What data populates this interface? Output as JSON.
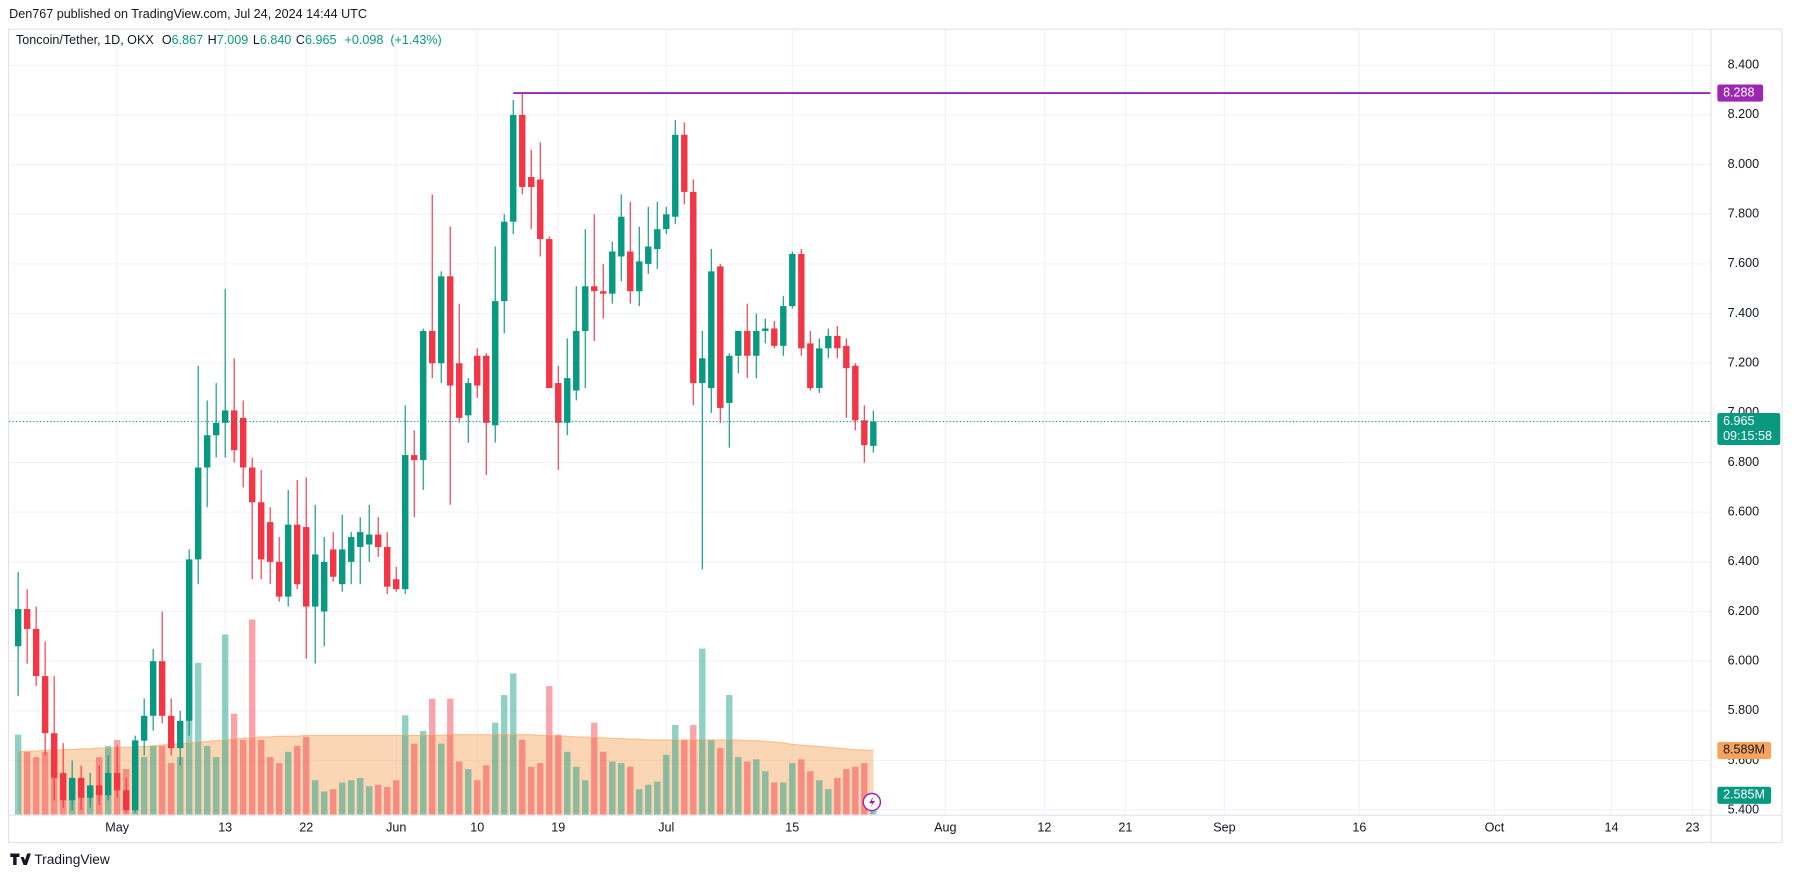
{
  "chart_data": {
    "type": "candlestick",
    "published": "Den767 published on TradingView.com, Jul 24, 2024 14:44 UTC",
    "symbol": "Toncoin/Tether, 1D, OKX",
    "legend_keys": [
      "O",
      "H",
      "L",
      "C"
    ],
    "legend_values": [
      6.867,
      7.009,
      {
        "value": 6.84,
        "label": "6.840"
      },
      6.965
    ],
    "change": {
      "value": 0.098,
      "label": "+0.098"
    },
    "change_percent": {
      "value": 1.43,
      "label": "(+1.43%)"
    },
    "countdown": "09:15:58",
    "brand": "TradingView",
    "up_color": "#089981",
    "down_color": "#f23645",
    "volume_ma_color": "#f7a35c",
    "grid": true,
    "x": [
      "2024-04-20",
      "2024-04-21",
      "2024-04-22",
      "2024-04-23",
      "2024-04-24",
      "2024-04-25",
      "2024-04-26",
      "2024-04-27",
      "2024-04-28",
      "2024-04-29",
      "2024-04-30",
      "2024-05-01",
      "2024-05-02",
      "2024-05-03",
      "2024-05-04",
      "2024-05-05",
      "2024-05-06",
      "2024-05-07",
      "2024-05-08",
      "2024-05-09",
      "2024-05-10",
      "2024-05-11",
      "2024-05-12",
      "2024-05-13",
      "2024-05-14",
      "2024-05-15",
      "2024-05-16",
      "2024-05-17",
      "2024-05-18",
      "2024-05-19",
      "2024-05-20",
      "2024-05-21",
      "2024-05-22",
      "2024-05-23",
      "2024-05-24",
      "2024-05-25",
      "2024-05-26",
      "2024-05-27",
      "2024-05-28",
      "2024-05-29",
      "2024-05-30",
      "2024-05-31",
      "2024-06-01",
      "2024-06-02",
      "2024-06-03",
      "2024-06-04",
      "2024-06-05",
      "2024-06-06",
      "2024-06-07",
      "2024-06-08",
      "2024-06-09",
      "2024-06-10",
      "2024-06-11",
      "2024-06-12",
      "2024-06-13",
      "2024-06-14",
      "2024-06-15",
      "2024-06-16",
      "2024-06-17",
      "2024-06-18",
      "2024-06-19",
      "2024-06-20",
      "2024-06-21",
      "2024-06-22",
      "2024-06-23",
      "2024-06-24",
      "2024-06-25",
      "2024-06-26",
      "2024-06-27",
      "2024-06-28",
      "2024-06-29",
      "2024-06-30",
      "2024-07-01",
      "2024-07-02",
      "2024-07-03",
      "2024-07-04",
      "2024-07-05",
      "2024-07-06",
      "2024-07-07",
      "2024-07-08",
      "2024-07-09",
      "2024-07-10",
      "2024-07-11",
      "2024-07-12",
      "2024-07-13",
      "2024-07-14",
      "2024-07-15",
      "2024-07-16",
      "2024-07-17",
      "2024-07-18",
      "2024-07-19",
      "2024-07-20",
      "2024-07-21",
      "2024-07-22",
      "2024-07-23",
      "2024-07-24"
    ],
    "open": [
      6.06,
      6.21,
      6.13,
      5.94,
      5.71,
      5.55,
      5.44,
      5.53,
      5.45,
      5.5,
      5.46,
      5.55,
      5.48,
      5.4,
      5.68,
      5.78,
      6.0,
      5.78,
      5.65,
      5.76,
      6.41,
      6.78,
      6.91,
      6.96,
      7.01,
      6.98,
      6.78,
      6.64,
      6.56,
      6.4,
      6.26,
      6.55,
      6.54,
      6.22,
      6.2,
      6.45,
      6.31,
      6.4,
      6.46,
      6.47,
      6.51,
      6.46,
      6.33,
      6.29,
      6.83,
      6.81,
      7.33,
      7.2,
      7.55,
      7.2,
      6.99,
      7.23,
      7.23,
      6.95,
      7.45,
      7.77,
      8.2,
      7.95,
      7.94,
      7.7,
      7.12,
      6.96,
      7.09,
      7.33,
      7.51,
      7.49,
      7.48,
      7.63,
      7.65,
      7.49,
      7.6,
      7.66,
      7.74,
      7.79,
      8.12,
      7.89,
      7.12,
      7.1,
      7.59,
      7.04,
      7.23,
      7.33,
      7.23,
      7.33,
      7.34,
      7.27,
      7.43,
      7.64,
      7.28,
      7.1,
      7.26,
      7.31,
      7.27,
      7.19,
      6.97,
      6.867
    ],
    "high": [
      6.36,
      6.29,
      6.22,
      6.08,
      5.94,
      5.67,
      5.6,
      5.58,
      5.55,
      5.58,
      5.62,
      5.66,
      5.53,
      5.7,
      5.85,
      6.05,
      6.2,
      5.85,
      5.8,
      6.45,
      7.19,
      7.05,
      7.12,
      7.5,
      7.22,
      7.05,
      6.82,
      6.77,
      6.62,
      6.5,
      6.69,
      6.73,
      6.74,
      6.63,
      6.5,
      6.52,
      6.59,
      6.52,
      6.58,
      6.63,
      6.58,
      6.52,
      6.38,
      7.03,
      6.93,
      7.34,
      7.88,
      7.57,
      7.75,
      7.44,
      7.14,
      7.26,
      7.24,
      7.67,
      7.8,
      8.26,
      8.29,
      8.06,
      8.09,
      7.71,
      7.19,
      7.3,
      7.51,
      7.74,
      7.8,
      7.6,
      7.69,
      7.88,
      7.85,
      7.75,
      7.83,
      7.85,
      7.83,
      8.18,
      8.17,
      7.94,
      7.33,
      7.66,
      7.6,
      7.24,
      7.33,
      7.44,
      7.4,
      7.38,
      7.37,
      7.47,
      7.65,
      7.66,
      7.33,
      7.3,
      7.34,
      7.35,
      7.3,
      7.2,
      7.03,
      7.009
    ],
    "low": [
      5.86,
      5.99,
      5.9,
      5.62,
      5.44,
      5.41,
      5.4,
      5.4,
      5.41,
      5.42,
      5.44,
      5.45,
      5.39,
      5.39,
      5.62,
      5.72,
      5.75,
      5.62,
      5.58,
      5.7,
      6.31,
      6.62,
      6.82,
      6.82,
      6.8,
      6.7,
      6.33,
      6.33,
      6.31,
      6.24,
      6.22,
      6.29,
      6.01,
      5.99,
      6.06,
      6.32,
      6.28,
      6.31,
      6.31,
      6.4,
      6.42,
      6.27,
      6.28,
      6.27,
      6.58,
      6.69,
      7.14,
      7.12,
      6.63,
      6.96,
      6.88,
      7.06,
      6.75,
      6.88,
      7.32,
      7.72,
      7.88,
      7.74,
      7.63,
      7.1,
      6.77,
      6.91,
      7.05,
      7.1,
      7.29,
      7.38,
      7.44,
      7.53,
      7.44,
      7.43,
      7.56,
      7.58,
      7.72,
      7.76,
      7.84,
      7.03,
      6.37,
      7.0,
      6.96,
      6.86,
      7.16,
      7.14,
      7.14,
      7.28,
      7.26,
      7.23,
      7.42,
      7.23,
      7.09,
      7.08,
      7.22,
      7.22,
      6.98,
      6.93,
      6.8,
      6.84
    ],
    "close": [
      6.21,
      6.13,
      5.94,
      5.71,
      5.53,
      5.44,
      5.53,
      5.45,
      5.5,
      5.46,
      5.55,
      5.48,
      5.4,
      5.68,
      5.78,
      6.0,
      5.78,
      5.65,
      5.76,
      6.41,
      6.78,
      6.91,
      6.96,
      7.01,
      6.85,
      6.78,
      6.64,
      6.41,
      6.4,
      6.26,
      6.55,
      6.31,
      6.22,
      6.43,
      6.4,
      6.34,
      6.45,
      6.5,
      6.52,
      6.51,
      6.46,
      6.3,
      6.29,
      6.83,
      6.81,
      7.33,
      7.2,
      7.55,
      7.11,
      6.98,
      7.12,
      7.11,
      6.96,
      7.45,
      7.77,
      8.2,
      7.91,
      7.91,
      7.7,
      7.1,
      6.96,
      7.14,
      7.33,
      7.51,
      7.49,
      7.48,
      7.65,
      7.79,
      7.49,
      7.61,
      7.67,
      7.74,
      7.8,
      8.12,
      7.89,
      7.12,
      7.22,
      7.57,
      7.02,
      7.23,
      7.33,
      7.23,
      7.33,
      7.34,
      7.27,
      7.43,
      7.64,
      7.26,
      7.1,
      7.26,
      7.31,
      7.26,
      7.18,
      6.97,
      6.87,
      6.965
    ],
    "volume": [
      10.7,
      8.4,
      7.7,
      8.4,
      10.7,
      5.4,
      4.6,
      3.1,
      3.8,
      7.7,
      9.2,
      10.0,
      6.1,
      10.0,
      7.7,
      9.2,
      9.2,
      6.9,
      7.7,
      16.9,
      20.3,
      9.2,
      7.7,
      24.1,
      13.5,
      10.0,
      26.1,
      10.0,
      7.7,
      6.9,
      8.4,
      9.2,
      10.4,
      4.6,
      3.1,
      3.4,
      4.3,
      4.6,
      4.9,
      3.8,
      4.0,
      3.7,
      4.6,
      13.3,
      9.5,
      11.2,
      15.5,
      9.5,
      15.5,
      7.1,
      6.1,
      4.6,
      6.6,
      12.3,
      16.0,
      18.9,
      10.0,
      6.4,
      6.9,
      17.2,
      10.7,
      8.4,
      6.4,
      4.6,
      12.3,
      8.4,
      7.1,
      6.9,
      6.4,
      3.4,
      4.0,
      4.4,
      8.0,
      12.0,
      10.0,
      12.0,
      22.2,
      10.0,
      8.9,
      16.0,
      7.7,
      7.1,
      7.4,
      5.8,
      4.3,
      4.3,
      6.9,
      7.4,
      5.8,
      4.6,
      3.4,
      4.9,
      6.1,
      6.4,
      6.9,
      2.585
    ],
    "volume_ma": [
      8.4,
      8.5,
      8.5,
      8.6,
      8.6,
      8.7,
      8.7,
      8.8,
      8.8,
      8.9,
      8.9,
      9.0,
      9.0,
      9.1,
      9.1,
      9.2,
      9.3,
      9.4,
      9.5,
      9.6,
      9.7,
      9.8,
      9.9,
      10.0,
      10.1,
      10.2,
      10.3,
      10.4,
      10.4,
      10.5,
      10.5,
      10.5,
      10.6,
      10.6,
      10.6,
      10.6,
      10.6,
      10.6,
      10.6,
      10.6,
      10.6,
      10.6,
      10.6,
      10.6,
      10.6,
      10.6,
      10.6,
      10.6,
      10.7,
      10.7,
      10.7,
      10.7,
      10.7,
      10.7,
      10.7,
      10.7,
      10.7,
      10.7,
      10.6,
      10.6,
      10.5,
      10.5,
      10.4,
      10.4,
      10.3,
      10.3,
      10.2,
      10.2,
      10.1,
      10.1,
      10.0,
      10.0,
      10.0,
      10.0,
      10.0,
      10.0,
      10.0,
      10.0,
      10.0,
      10.0,
      10.0,
      9.9,
      9.9,
      9.8,
      9.7,
      9.6,
      9.4,
      9.3,
      9.2,
      9.1,
      9.0,
      8.9,
      8.8,
      8.7,
      8.65,
      8.589
    ],
    "volume_tags": [
      {
        "value": 8.589,
        "label": "8.589M"
      },
      {
        "value": 2.585,
        "label": "2.585M"
      }
    ],
    "volume_ylim": [
      0,
      105
    ],
    "hline": {
      "value": 8.288,
      "start": "2024-06-14",
      "color": "#9c27b0"
    },
    "xlim": [
      "2024-04-19",
      "2024-10-25"
    ],
    "xticks": [
      {
        "value": "2024-05-01",
        "label": "May"
      },
      {
        "value": "2024-05-13",
        "label": "13"
      },
      {
        "value": "2024-05-22",
        "label": "22"
      },
      {
        "value": "2024-06-01",
        "label": "Jun"
      },
      {
        "value": "2024-06-10",
        "label": "10"
      },
      {
        "value": "2024-06-19",
        "label": "19"
      },
      {
        "value": "2024-07-01",
        "label": "Jul"
      },
      {
        "value": "2024-07-15",
        "label": "15"
      },
      {
        "value": "2024-08-01",
        "label": "Aug"
      },
      {
        "value": "2024-08-12",
        "label": "12"
      },
      {
        "value": "2024-08-21",
        "label": "21"
      },
      {
        "value": "2024-09-01",
        "label": "Sep"
      },
      {
        "value": "2024-09-16",
        "label": "16"
      },
      {
        "value": "2024-10-01",
        "label": "Oct"
      },
      {
        "value": "2024-10-14",
        "label": "14"
      },
      {
        "value": "2024-10-23",
        "label": "23"
      }
    ],
    "ylim": [
      5.382,
      8.543
    ],
    "yticks": [
      {
        "value": 5.4,
        "label": "5.400"
      },
      {
        "value": 5.6,
        "label": "5.600"
      },
      {
        "value": 5.8,
        "label": "5.800"
      },
      {
        "value": 6.0,
        "label": "6.000"
      },
      {
        "value": 6.2,
        "label": "6.200"
      },
      {
        "value": 6.4,
        "label": "6.400"
      },
      {
        "value": 6.6,
        "label": "6.600"
      },
      {
        "value": 6.8,
        "label": "6.800"
      },
      {
        "value": 7.0,
        "label": "7.000"
      },
      {
        "value": 7.2,
        "label": "7.200"
      },
      {
        "value": 7.4,
        "label": "7.400"
      },
      {
        "value": 7.6,
        "label": "7.600"
      },
      {
        "value": 7.8,
        "label": "7.800"
      },
      {
        "value": 8.0,
        "label": "8.000"
      },
      {
        "value": 8.2,
        "label": "8.200"
      },
      {
        "value": 8.4,
        "label": "8.400"
      }
    ]
  }
}
